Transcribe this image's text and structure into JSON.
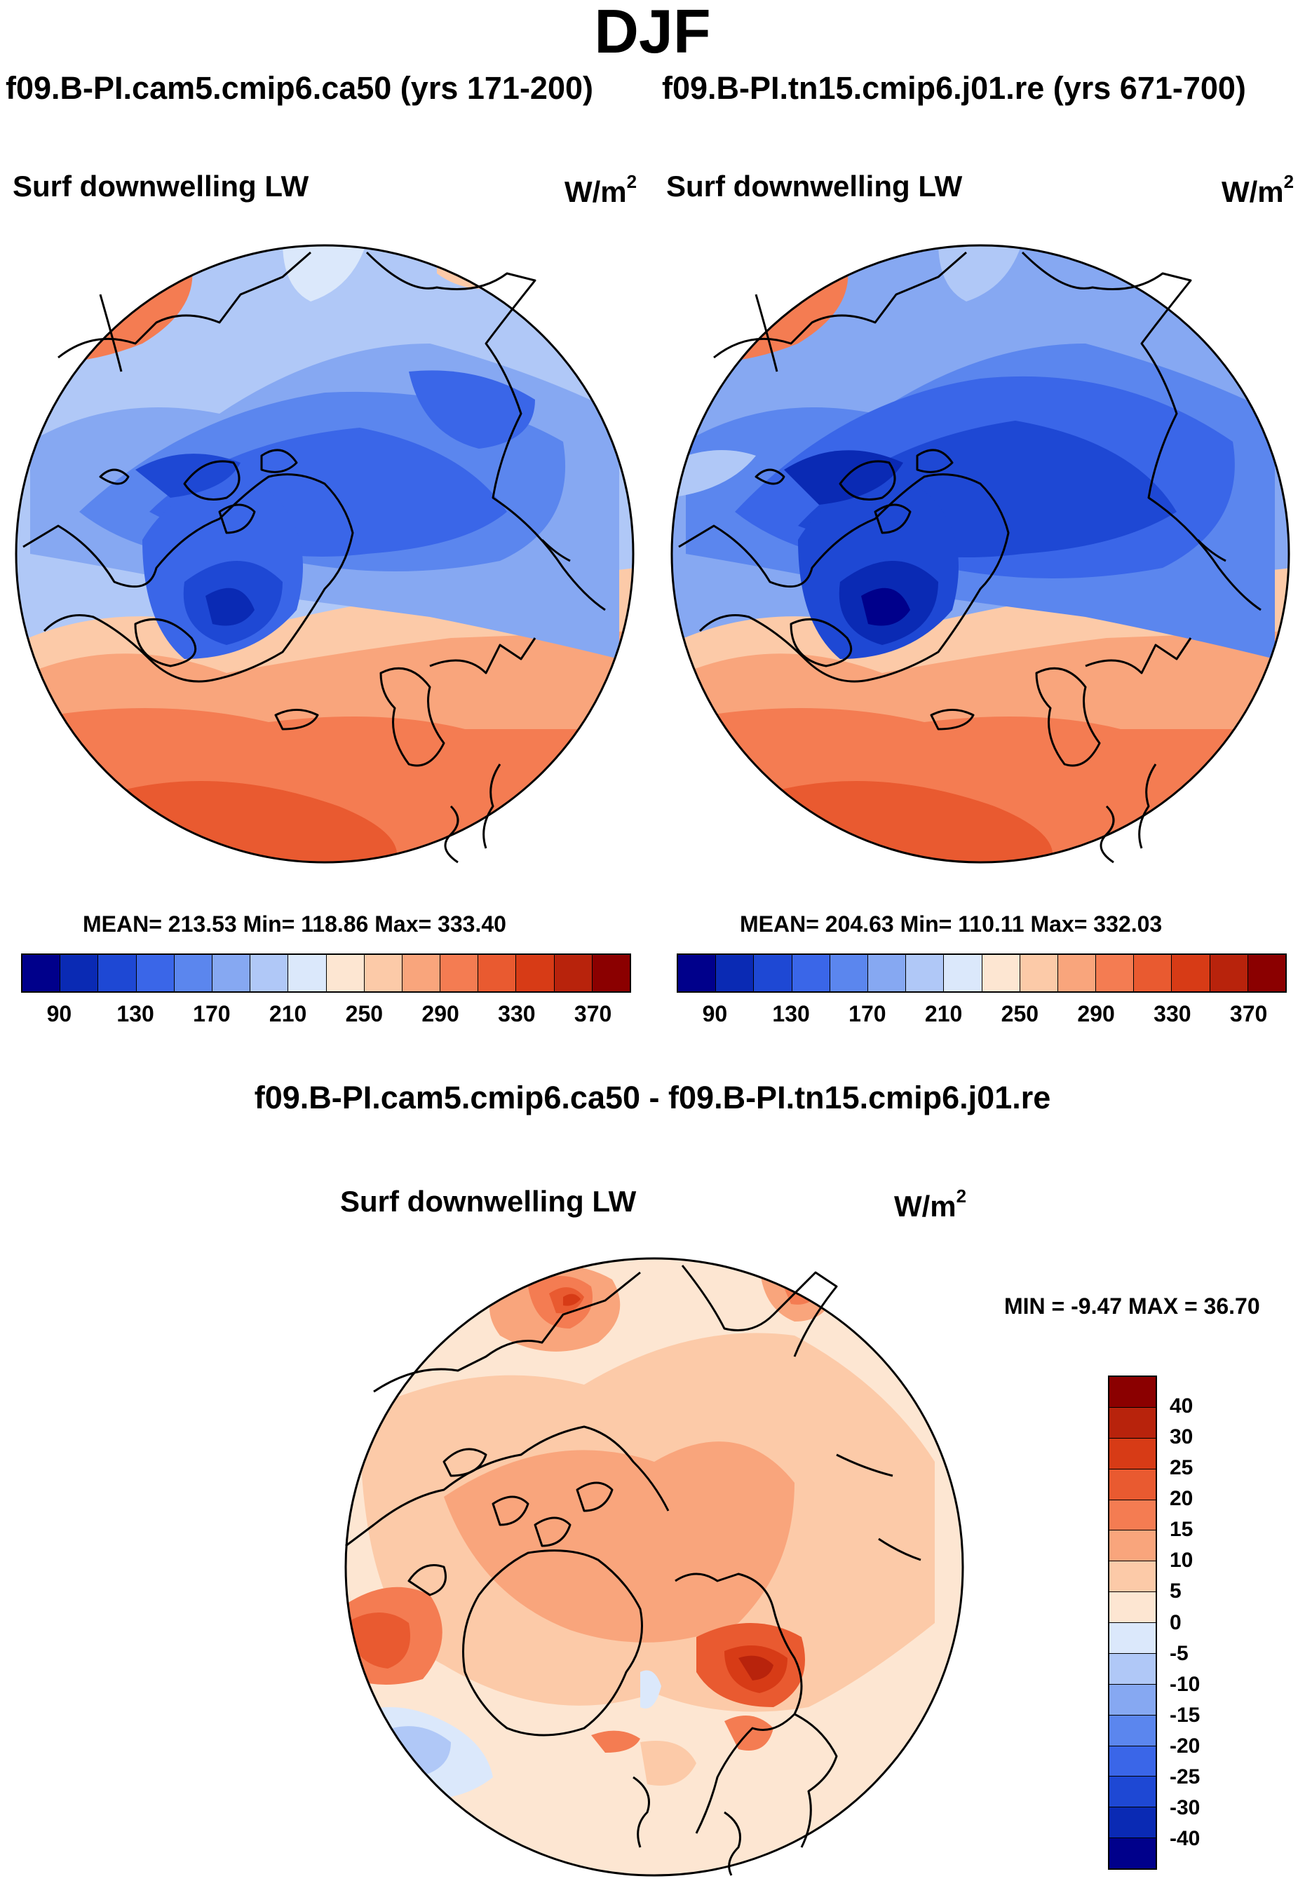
{
  "header": {
    "title": "DJF",
    "case1": "f09.B-PI.cam5.cmip6.ca50 (yrs 171-200)",
    "case2": "f09.B-PI.tn15.cmip6.j01.re (yrs 671-700)"
  },
  "panel1": {
    "var_label": "Surf downwelling LW",
    "units": "W/m",
    "units_exp": "2",
    "stats": "MEAN= 213.53  Min= 118.86  Max= 333.40"
  },
  "panel2": {
    "var_label": "Surf downwelling LW",
    "units": "W/m",
    "units_exp": "2",
    "stats": "MEAN= 204.63  Min= 110.11  Max= 332.03"
  },
  "colorbar_main": {
    "colors": [
      "#00008b",
      "#0a2ab4",
      "#1e48d4",
      "#3a66e8",
      "#5b86ee",
      "#86a8f2",
      "#b0c8f7",
      "#dbe8fb",
      "#fde6d2",
      "#fccaa8",
      "#f9a57c",
      "#f47c52",
      "#e95a30",
      "#d73b16",
      "#b8230c",
      "#8b0000"
    ],
    "tick_labels": [
      "90",
      "130",
      "170",
      "210",
      "250",
      "290",
      "330",
      "370"
    ]
  },
  "diff": {
    "title": "f09.B-PI.cam5.cmip6.ca50 - f09.B-PI.tn15.cmip6.j01.re",
    "var_label": "Surf downwelling LW",
    "units": "W/m",
    "units_exp": "2",
    "minmax": "MIN =  -9.47 MAX =  36.70"
  },
  "colorbar_diff": {
    "colors": [
      "#8b0000",
      "#b8230c",
      "#d73b16",
      "#e95a30",
      "#f47c52",
      "#f9a57c",
      "#fccaa8",
      "#fde6d2",
      "#dbe8fb",
      "#b0c8f7",
      "#86a8f2",
      "#5b86ee",
      "#3a66e8",
      "#1e48d4",
      "#0a2ab4",
      "#00008b"
    ],
    "tick_labels": [
      "40",
      "30",
      "25",
      "20",
      "15",
      "10",
      "5",
      "0",
      "-5",
      "-10",
      "-15",
      "-20",
      "-25",
      "-30",
      "-40"
    ]
  },
  "palette": {
    "blue_dark": "#0a2ab4",
    "blue_mid": "#3a66e8",
    "blue_light": "#86a8f2",
    "blue_pale": "#b0c8f7",
    "white_blue": "#dbe8fb",
    "peach": "#fde6d2",
    "salmon": "#fccaa8",
    "orange": "#f9a57c",
    "orange_red": "#f47c52",
    "red": "#e95a30",
    "deep_red": "#d73b16"
  }
}
